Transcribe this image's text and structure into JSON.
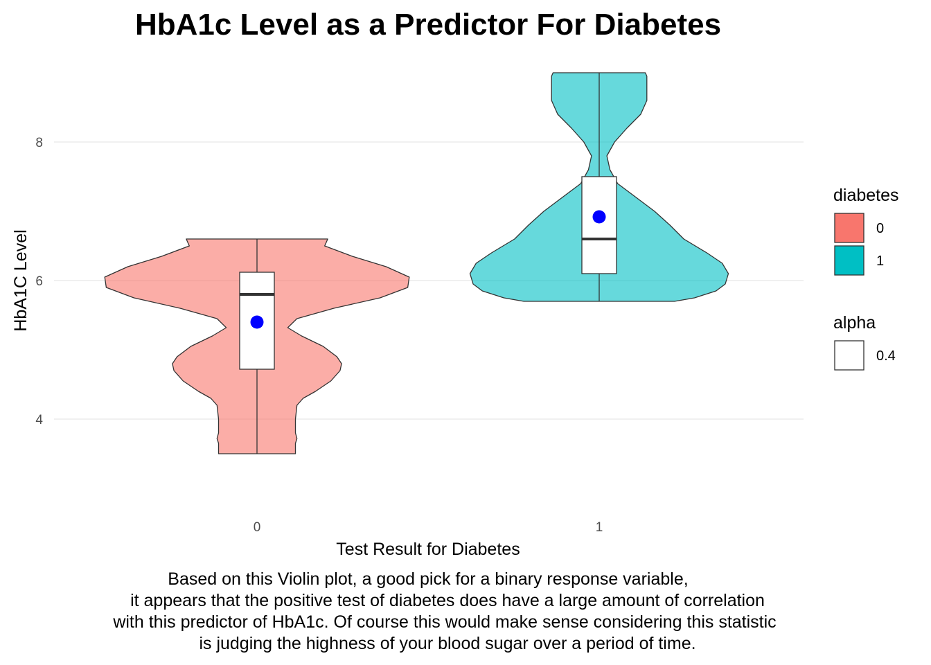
{
  "chart_data": {
    "type": "violin",
    "title": "HbA1c Level as a Predictor For Diabetes",
    "xlabel": "Test Result for Diabetes",
    "ylabel": "HbA1C Level",
    "ylim": [
      2.9,
      9.1
    ],
    "yticks": [
      4,
      6,
      8
    ],
    "categories": [
      "0",
      "1"
    ],
    "grid": "horizontal major lines",
    "legend": [
      {
        "title": "diabetes",
        "entries": [
          {
            "label": "0",
            "color": "#F8766D"
          },
          {
            "label": "1",
            "color": "#00BFC4"
          }
        ]
      },
      {
        "title": "alpha",
        "entries": [
          {
            "label": "0.4",
            "color": "#ffffff"
          }
        ]
      }
    ],
    "legend_position": "right",
    "groups": [
      {
        "category": "0",
        "color": "#F8766D",
        "fill_alpha": 0.6,
        "min": 3.5,
        "max": 6.6,
        "box": {
          "q1": 4.72,
          "median": 5.8,
          "q3": 6.12,
          "whisker_low": 3.5,
          "whisker_high": 6.6
        },
        "mean": 5.4,
        "density": [
          [
            3.5,
            0.25
          ],
          [
            3.6,
            0.25
          ],
          [
            3.65,
            0.25
          ],
          [
            3.72,
            0.26
          ],
          [
            3.8,
            0.25
          ],
          [
            4.0,
            0.25
          ],
          [
            4.2,
            0.26
          ],
          [
            4.3,
            0.3
          ],
          [
            4.4,
            0.38
          ],
          [
            4.55,
            0.48
          ],
          [
            4.7,
            0.54
          ],
          [
            4.8,
            0.55
          ],
          [
            4.9,
            0.52
          ],
          [
            5.05,
            0.43
          ],
          [
            5.2,
            0.29
          ],
          [
            5.32,
            0.2
          ],
          [
            5.45,
            0.26
          ],
          [
            5.6,
            0.5
          ],
          [
            5.75,
            0.8
          ],
          [
            5.9,
            0.98
          ],
          [
            6.05,
            0.99
          ],
          [
            6.2,
            0.84
          ],
          [
            6.35,
            0.62
          ],
          [
            6.5,
            0.44
          ],
          [
            6.6,
            0.46
          ]
        ]
      },
      {
        "category": "1",
        "color": "#00BFC4",
        "fill_alpha": 0.6,
        "min": 5.7,
        "max": 9.0,
        "box": {
          "q1": 6.1,
          "median": 6.6,
          "q3": 7.5,
          "whisker_low": 5.7,
          "whisker_high": 9.0
        },
        "mean": 6.92,
        "density": [
          [
            5.7,
            0.49
          ],
          [
            5.75,
            0.62
          ],
          [
            5.85,
            0.76
          ],
          [
            5.95,
            0.82
          ],
          [
            6.1,
            0.84
          ],
          [
            6.25,
            0.8
          ],
          [
            6.4,
            0.7
          ],
          [
            6.6,
            0.55
          ],
          [
            6.8,
            0.46
          ],
          [
            7.0,
            0.36
          ],
          [
            7.2,
            0.24
          ],
          [
            7.4,
            0.12
          ],
          [
            7.6,
            0.07
          ],
          [
            7.8,
            0.05
          ],
          [
            8.0,
            0.1
          ],
          [
            8.2,
            0.18
          ],
          [
            8.4,
            0.27
          ],
          [
            8.6,
            0.31
          ],
          [
            8.8,
            0.31
          ],
          [
            8.95,
            0.31
          ],
          [
            9.0,
            0.3
          ]
        ]
      }
    ]
  },
  "caption_lines": [
    "Based on this Violin plot, a good pick for a binary response variable,",
    "it appears that the positive test of diabetes does have a large amount of correlation",
    "with this predictor of HbA1c. Of course this would make sense considering this statistic",
    "is judging the highness of your blood sugar over a period of time."
  ]
}
